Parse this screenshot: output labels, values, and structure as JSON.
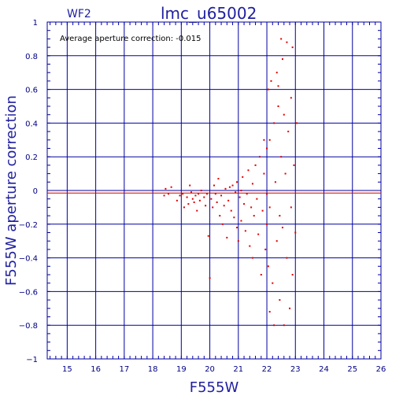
{
  "header": {
    "chip": "WF2",
    "title": "lmc_u65002",
    "note": "Average aperture correction:  -0.015"
  },
  "chart_data": {
    "type": "scatter",
    "title": "lmc_u65002",
    "xlabel": "F555W",
    "ylabel": "F555W aperture correction",
    "xlim": [
      14.3,
      26
    ],
    "ylim": [
      -1,
      1
    ],
    "xticks": [
      15,
      16,
      17,
      18,
      19,
      20,
      21,
      22,
      23,
      24,
      25,
      26
    ],
    "yticks": [
      -1,
      -0.8,
      -0.6,
      -0.4,
      -0.2,
      0,
      0.2,
      0.4,
      0.6,
      0.8,
      1
    ],
    "ytick_labels": [
      "−1",
      "−0.8",
      "−0.6",
      "−0.4",
      "−0.2",
      "0",
      "0.2",
      "0.4",
      "0.6",
      "0.8",
      "1"
    ],
    "grid": true,
    "average_correction": -0.015,
    "colors": {
      "points": "#e00000",
      "grid": "#0000a0",
      "average_line": "#cc0000",
      "axis_text": "#2020a0"
    },
    "series": [
      {
        "points": [
          [
            18.4,
            -0.03
          ],
          [
            18.45,
            0.01
          ],
          [
            18.55,
            -0.02
          ],
          [
            18.65,
            0.02
          ],
          [
            18.85,
            -0.06
          ],
          [
            18.95,
            -0.03
          ],
          [
            19.05,
            -0.02
          ],
          [
            19.1,
            -0.1
          ],
          [
            19.2,
            -0.04
          ],
          [
            19.25,
            -0.08
          ],
          [
            19.3,
            0.03
          ],
          [
            19.35,
            -0.01
          ],
          [
            19.4,
            -0.05
          ],
          [
            19.45,
            -0.07
          ],
          [
            19.5,
            -0.03
          ],
          [
            19.55,
            -0.12
          ],
          [
            19.6,
            -0.02
          ],
          [
            19.65,
            -0.06
          ],
          [
            19.7,
            0.0
          ],
          [
            19.8,
            -0.04
          ],
          [
            19.85,
            -0.09
          ],
          [
            19.9,
            -0.02
          ],
          [
            19.95,
            -0.27
          ],
          [
            20.0,
            -0.52
          ],
          [
            20.05,
            -0.05
          ],
          [
            20.1,
            -0.1
          ],
          [
            20.15,
            0.03
          ],
          [
            20.2,
            -0.02
          ],
          [
            20.25,
            -0.07
          ],
          [
            20.3,
            0.07
          ],
          [
            20.35,
            -0.15
          ],
          [
            20.4,
            -0.03
          ],
          [
            20.45,
            -0.2
          ],
          [
            20.5,
            -0.09
          ],
          [
            20.55,
            0.01
          ],
          [
            20.6,
            -0.28
          ],
          [
            20.65,
            -0.06
          ],
          [
            20.7,
            0.02
          ],
          [
            20.75,
            -0.12
          ],
          [
            20.8,
            0.03
          ],
          [
            20.85,
            -0.16
          ],
          [
            20.9,
            -0.01
          ],
          [
            20.95,
            -0.22
          ],
          [
            20.95,
            0.05
          ],
          [
            21.0,
            -0.3
          ],
          [
            21.05,
            -0.04
          ],
          [
            21.1,
            0.0
          ],
          [
            21.1,
            -0.18
          ],
          [
            21.15,
            0.08
          ],
          [
            21.2,
            -0.08
          ],
          [
            21.25,
            -0.24
          ],
          [
            21.3,
            -0.02
          ],
          [
            21.35,
            0.12
          ],
          [
            21.4,
            -0.33
          ],
          [
            21.45,
            -0.1
          ],
          [
            21.5,
            0.04
          ],
          [
            21.5,
            -0.4
          ],
          [
            21.55,
            -0.15
          ],
          [
            21.6,
            0.15
          ],
          [
            21.65,
            -0.05
          ],
          [
            21.7,
            -0.26
          ],
          [
            21.75,
            0.2
          ],
          [
            21.8,
            -0.5
          ],
          [
            21.85,
            -0.12
          ],
          [
            21.9,
            0.1
          ],
          [
            21.95,
            -0.35
          ],
          [
            22.0,
            0.25
          ],
          [
            22.0,
            -0.02
          ],
          [
            22.0,
            -0.2
          ],
          [
            22.05,
            0.6
          ],
          [
            22.05,
            -0.45
          ],
          [
            22.1,
            0.3
          ],
          [
            22.1,
            -0.1
          ],
          [
            22.15,
            0.65
          ],
          [
            22.2,
            -0.55
          ],
          [
            22.25,
            0.4
          ],
          [
            22.3,
            0.05
          ],
          [
            22.35,
            -0.3
          ],
          [
            22.35,
            0.7
          ],
          [
            22.4,
            0.5
          ],
          [
            22.45,
            -0.65
          ],
          [
            22.5,
            0.9
          ],
          [
            22.5,
            0.2
          ],
          [
            22.55,
            -0.22
          ],
          [
            22.55,
            0.78
          ],
          [
            22.6,
            -0.8
          ],
          [
            22.65,
            0.1
          ],
          [
            22.7,
            0.88
          ],
          [
            22.7,
            -0.4
          ],
          [
            22.75,
            0.35
          ],
          [
            22.8,
            -0.7
          ],
          [
            22.85,
            0.55
          ],
          [
            22.85,
            -0.1
          ],
          [
            22.9,
            0.85
          ],
          [
            22.9,
            -0.5
          ],
          [
            22.95,
            0.15
          ],
          [
            23.0,
            -0.25
          ],
          [
            23.05,
            0.4
          ],
          [
            22.1,
            -0.72
          ],
          [
            21.9,
            0.3
          ],
          [
            22.25,
            -0.8
          ],
          [
            22.4,
            0.62
          ],
          [
            22.6,
            0.45
          ],
          [
            22.45,
            -0.15
          ]
        ]
      }
    ]
  }
}
